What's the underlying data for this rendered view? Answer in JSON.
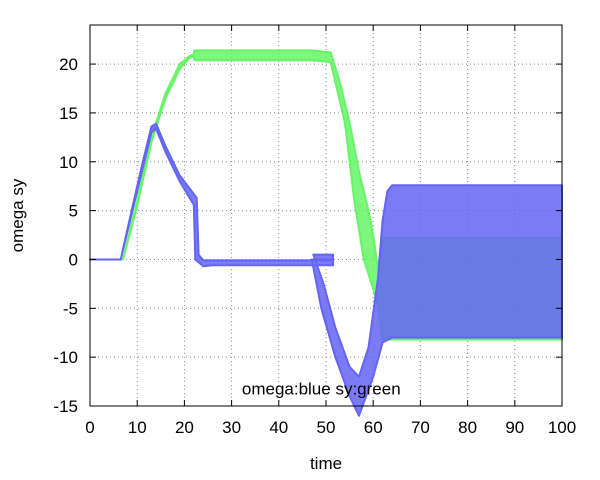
{
  "chart_data": {
    "type": "area",
    "xlabel": "time",
    "ylabel": "omega  sy",
    "xlim": [
      0,
      100
    ],
    "ylim": [
      -15,
      24
    ],
    "xticks": [
      0,
      10,
      20,
      30,
      40,
      50,
      60,
      70,
      80,
      90,
      100
    ],
    "yticks": [
      -15,
      -10,
      -5,
      0,
      5,
      10,
      15,
      20
    ],
    "grid": true,
    "annotation": "omega:blue sy:green",
    "series": [
      {
        "key": "sy",
        "color": "#66f566",
        "lower": [
          [
            0,
            0
          ],
          [
            7,
            0
          ],
          [
            10,
            5.5
          ],
          [
            13,
            12
          ],
          [
            16,
            16.5
          ],
          [
            19,
            19.5
          ],
          [
            21,
            20.6
          ],
          [
            22,
            20.8
          ],
          [
            22.1,
            20.4
          ],
          [
            47,
            20.4
          ],
          [
            51,
            20.2
          ],
          [
            54,
            14
          ],
          [
            56,
            6
          ],
          [
            58,
            0
          ],
          [
            60,
            -3
          ],
          [
            61,
            -4.8
          ],
          [
            62,
            -8.2
          ],
          [
            100,
            -8.2
          ]
        ],
        "upper": [
          [
            0,
            0
          ],
          [
            7,
            0
          ],
          [
            10,
            6
          ],
          [
            13,
            12.5
          ],
          [
            16,
            17
          ],
          [
            19,
            20
          ],
          [
            21,
            20.8
          ],
          [
            22,
            21
          ],
          [
            22.1,
            21.4
          ],
          [
            47,
            21.4
          ],
          [
            51,
            21.2
          ],
          [
            53,
            18
          ],
          [
            55,
            14
          ],
          [
            57,
            9
          ],
          [
            59,
            5
          ],
          [
            60,
            2.5
          ],
          [
            61,
            -1
          ],
          [
            62,
            2.2
          ],
          [
            100,
            2.2
          ]
        ]
      },
      {
        "key": "omega",
        "color": "#6464f5",
        "lower": [
          [
            0,
            0
          ],
          [
            6.5,
            0
          ],
          [
            9,
            5
          ],
          [
            11,
            9
          ],
          [
            13,
            13
          ],
          [
            14,
            13.4
          ],
          [
            16,
            11
          ],
          [
            19,
            8
          ],
          [
            22,
            5.6
          ],
          [
            22.3,
            0
          ],
          [
            24,
            -0.7
          ],
          [
            26,
            -0.6
          ],
          [
            51.5,
            -0.6
          ],
          [
            51.5,
            0
          ],
          [
            47,
            0
          ],
          [
            49,
            -5
          ],
          [
            52,
            -10
          ],
          [
            55,
            -14
          ],
          [
            57,
            -16
          ],
          [
            60,
            -12
          ],
          [
            62,
            -8.5
          ],
          [
            64,
            -8
          ],
          [
            100,
            -8
          ]
        ],
        "upper": [
          [
            0,
            0
          ],
          [
            6.5,
            0
          ],
          [
            9,
            5.4
          ],
          [
            11,
            9.6
          ],
          [
            13,
            13.6
          ],
          [
            14,
            13.9
          ],
          [
            16,
            11.6
          ],
          [
            19,
            8.6
          ],
          [
            22.6,
            6.3
          ],
          [
            23,
            0.5
          ],
          [
            24,
            -0.1
          ],
          [
            51.5,
            -0.1
          ],
          [
            51.5,
            0.5
          ],
          [
            47.3,
            0.5
          ],
          [
            49.5,
            -2.5
          ],
          [
            52,
            -7
          ],
          [
            55,
            -11
          ],
          [
            57,
            -12
          ],
          [
            59,
            -9
          ],
          [
            61,
            -2
          ],
          [
            62,
            4
          ],
          [
            63,
            7
          ],
          [
            64,
            7.6
          ],
          [
            100,
            7.6
          ]
        ]
      }
    ]
  }
}
